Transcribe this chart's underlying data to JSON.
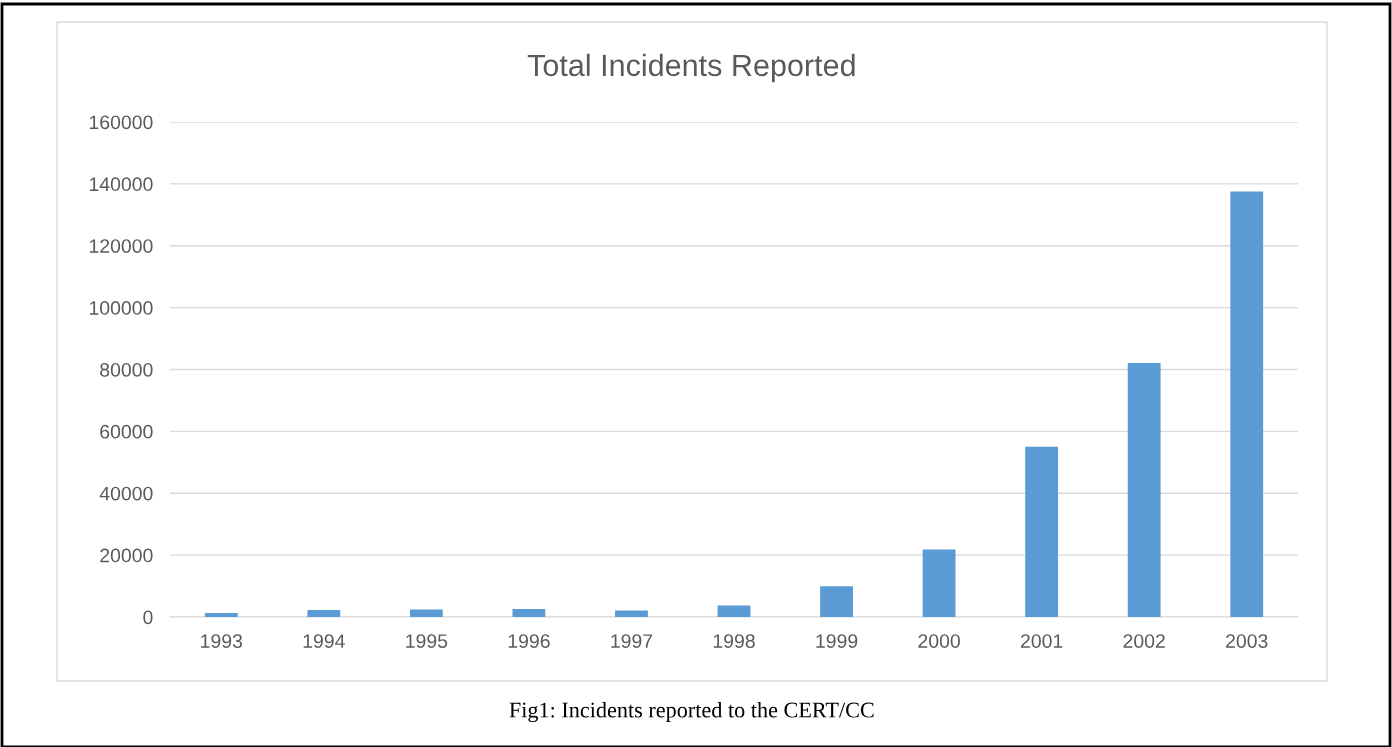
{
  "chart_data": {
    "type": "bar",
    "title": "Total Incidents Reported",
    "categories": [
      "1993",
      "1994",
      "1995",
      "1996",
      "1997",
      "1998",
      "1999",
      "2000",
      "2001",
      "2002",
      "2003"
    ],
    "values": [
      1300,
      2300,
      2400,
      2600,
      2100,
      3700,
      9900,
      21800,
      55000,
      82100,
      137500
    ],
    "color": "#5b9bd5",
    "ylim": [
      0,
      160000
    ],
    "yticks": [
      0,
      20000,
      40000,
      60000,
      80000,
      100000,
      120000,
      140000,
      160000
    ],
    "grid": "y",
    "legend": false,
    "annotations": [
      "Fig1: Incidents reported to the CERT/CC"
    ]
  }
}
